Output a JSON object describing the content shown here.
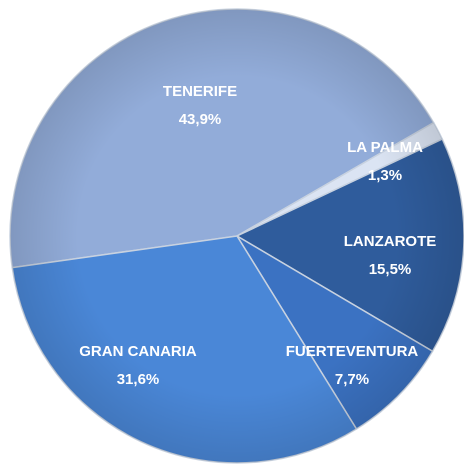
{
  "chart_data": {
    "type": "pie",
    "categories": [
      "TENERIFE",
      "LA PALMA",
      "LANZAROTE",
      "FUERTEVENTURA",
      "GRAN CANARIA"
    ],
    "values": [
      43.9,
      1.3,
      15.5,
      7.7,
      31.6
    ],
    "value_labels": [
      "43,9%",
      "1,3%",
      "15,5%",
      "7,7%",
      "31,6%"
    ],
    "colors": [
      "#92acd9",
      "#dbe4f3",
      "#2f5c9c",
      "#3b72c2",
      "#4a87d7"
    ]
  }
}
